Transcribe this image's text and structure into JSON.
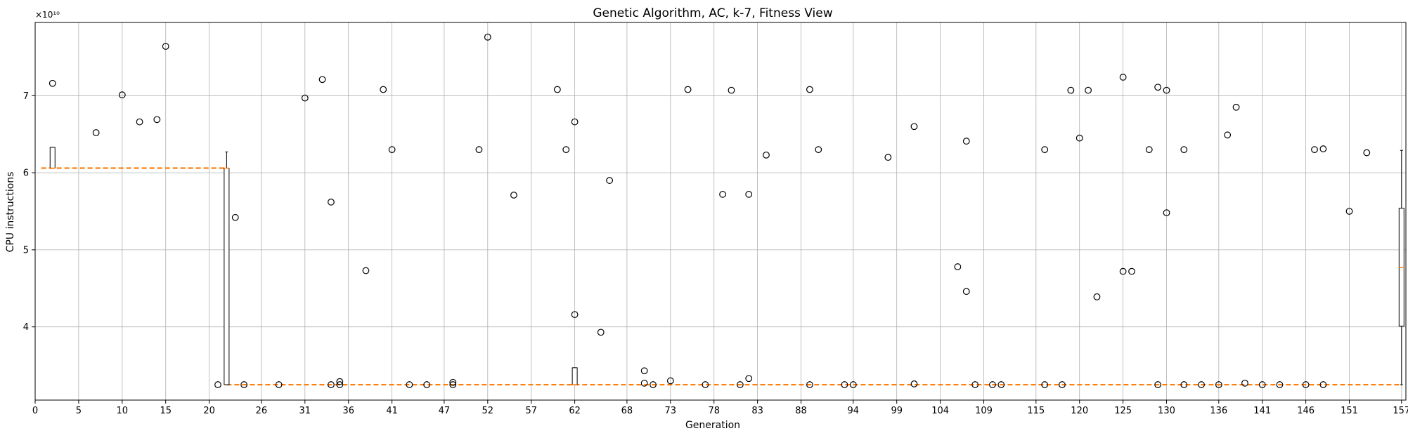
{
  "chart_data": {
    "type": "box",
    "title": "Genetic Algorithm, AC, k-7, Fitness View",
    "xlabel": "Generation",
    "ylabel": "CPU instructions",
    "y_multiplier": "×10¹⁰",
    "xlim": [
      0,
      157.5
    ],
    "ylim": [
      3.05,
      7.95
    ],
    "grid": true,
    "x_ticks": [
      0,
      5,
      10,
      15,
      20,
      26,
      31,
      36,
      41,
      47,
      52,
      57,
      62,
      68,
      73,
      78,
      83,
      88,
      94,
      99,
      104,
      109,
      115,
      120,
      125,
      130,
      136,
      141,
      146,
      151,
      157
    ],
    "y_ticks": [
      4,
      5,
      6,
      7
    ],
    "median_line": [
      {
        "from": 0.7,
        "to": 22,
        "value": 6.06
      },
      {
        "from": 22,
        "to": 157,
        "value": 3.25
      }
    ],
    "boxes": [
      {
        "x": 2,
        "q1": 6.06,
        "median": 6.06,
        "q3": 6.33,
        "whisker_low": 6.06,
        "whisker_high": 6.33
      },
      {
        "x": 22,
        "q1": 3.25,
        "median": 6.06,
        "q3": 6.06,
        "whisker_low": 3.25,
        "whisker_high": 6.27
      },
      {
        "x": 62,
        "q1": 3.25,
        "median": 3.25,
        "q3": 3.47,
        "whisker_low": 3.25,
        "whisker_high": 3.47
      },
      {
        "x": 157,
        "q1": 4.01,
        "median": 4.77,
        "q3": 5.54,
        "whisker_low": 3.25,
        "whisker_high": 6.29
      }
    ],
    "outliers": [
      [
        2,
        7.16
      ],
      [
        7,
        6.52
      ],
      [
        10,
        7.01
      ],
      [
        12,
        6.66
      ],
      [
        14,
        6.69
      ],
      [
        15,
        7.64
      ],
      [
        21,
        3.25
      ],
      [
        23,
        5.42
      ],
      [
        24,
        3.25
      ],
      [
        28,
        3.25
      ],
      [
        31,
        6.97
      ],
      [
        33,
        7.21
      ],
      [
        34,
        5.62
      ],
      [
        34,
        3.25
      ],
      [
        35,
        3.29
      ],
      [
        35,
        3.25
      ],
      [
        38,
        4.73
      ],
      [
        40,
        7.08
      ],
      [
        41,
        6.3
      ],
      [
        43,
        3.25
      ],
      [
        45,
        3.25
      ],
      [
        48,
        3.28
      ],
      [
        48,
        3.25
      ],
      [
        51,
        6.3
      ],
      [
        52,
        7.76
      ],
      [
        55,
        5.71
      ],
      [
        60,
        7.08
      ],
      [
        61,
        6.3
      ],
      [
        62,
        6.66
      ],
      [
        62,
        4.16
      ],
      [
        65,
        3.93
      ],
      [
        66,
        5.9
      ],
      [
        70,
        3.43
      ],
      [
        70,
        3.27
      ],
      [
        71,
        3.25
      ],
      [
        73,
        3.3
      ],
      [
        75,
        7.08
      ],
      [
        77,
        3.25
      ],
      [
        79,
        5.72
      ],
      [
        80,
        7.07
      ],
      [
        81,
        3.25
      ],
      [
        82,
        5.72
      ],
      [
        82,
        3.33
      ],
      [
        84,
        6.23
      ],
      [
        89,
        7.08
      ],
      [
        89,
        3.25
      ],
      [
        90,
        6.3
      ],
      [
        93,
        3.25
      ],
      [
        94,
        3.25
      ],
      [
        98,
        6.2
      ],
      [
        101,
        6.6
      ],
      [
        101,
        3.26
      ],
      [
        106,
        4.78
      ],
      [
        107,
        6.41
      ],
      [
        107,
        4.46
      ],
      [
        108,
        3.25
      ],
      [
        110,
        3.25
      ],
      [
        111,
        3.25
      ],
      [
        116,
        6.3
      ],
      [
        116,
        3.25
      ],
      [
        118,
        3.25
      ],
      [
        119,
        7.07
      ],
      [
        120,
        6.45
      ],
      [
        121,
        7.07
      ],
      [
        122,
        4.39
      ],
      [
        125,
        7.24
      ],
      [
        125,
        4.72
      ],
      [
        126,
        4.72
      ],
      [
        128,
        6.3
      ],
      [
        129,
        7.11
      ],
      [
        129,
        3.25
      ],
      [
        130,
        7.07
      ],
      [
        130,
        5.48
      ],
      [
        132,
        6.3
      ],
      [
        132,
        3.25
      ],
      [
        134,
        3.25
      ],
      [
        136,
        3.25
      ],
      [
        137,
        6.49
      ],
      [
        138,
        6.85
      ],
      [
        139,
        3.27
      ],
      [
        141,
        3.25
      ],
      [
        143,
        3.25
      ],
      [
        146,
        3.25
      ],
      [
        147,
        6.3
      ],
      [
        148,
        6.31
      ],
      [
        148,
        3.25
      ],
      [
        151,
        5.5
      ],
      [
        153,
        6.26
      ]
    ],
    "colors": {
      "median": "#ff7f0e",
      "grid": "#b0b0b0",
      "box": "#000000",
      "marker_edge": "#000000"
    }
  }
}
